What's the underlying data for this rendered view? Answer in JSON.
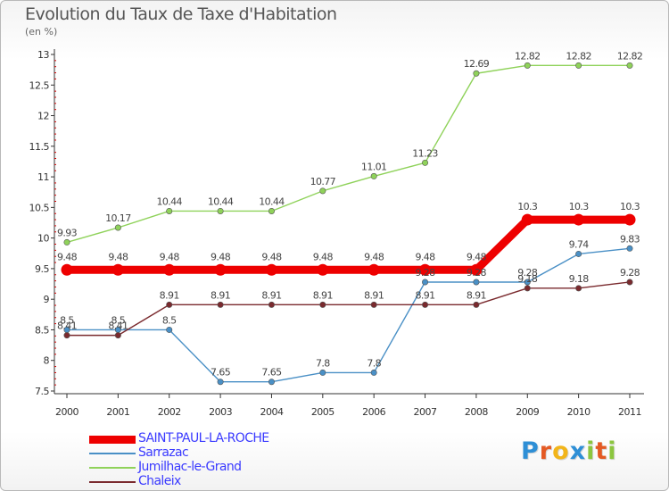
{
  "title": "Evolution du Taux de Taxe d'Habitation",
  "unit_label": "(en %)",
  "logo": {
    "text": "Proxiti",
    "letters": [
      "P",
      "r",
      "o",
      "x",
      "i",
      "t",
      "i"
    ],
    "colors": [
      "#2e8fd6",
      "#e45a24",
      "#f2b51a",
      "#2e8fd6",
      "#8cc63f",
      "#e45a24",
      "#8cc63f"
    ]
  },
  "chart_data": {
    "type": "line",
    "categories": [
      "2000",
      "2001",
      "2002",
      "2003",
      "2004",
      "2005",
      "2006",
      "2007",
      "2008",
      "2009",
      "2010",
      "2011"
    ],
    "ylim": [
      7.5,
      13
    ],
    "yticks": [
      "7.5",
      "8",
      "8.5",
      "9",
      "9.5",
      "10",
      "10.5",
      "11",
      "11.5",
      "12",
      "12.5",
      "13"
    ],
    "grid": false,
    "legend_position": "bottom-left",
    "series": [
      {
        "name": "SAINT-PAUL-LA-ROCHE",
        "color": "#ee0000",
        "width": 9,
        "values": [
          9.48,
          9.48,
          9.48,
          9.48,
          9.48,
          9.48,
          9.48,
          9.48,
          9.48,
          10.3,
          10.3,
          10.3
        ],
        "labels": [
          "9.48",
          "9.48",
          "9.48",
          "9.48",
          "9.48",
          "9.48",
          "9.48",
          "9.48",
          "9.48",
          "10.3",
          "10.3",
          "10.3"
        ]
      },
      {
        "name": "Sarrazac",
        "color": "#4a90c6",
        "width": 1.4,
        "values": [
          8.5,
          8.5,
          8.5,
          7.65,
          7.65,
          7.8,
          7.8,
          9.28,
          9.28,
          9.28,
          9.74,
          9.83
        ],
        "labels": [
          "8.5",
          "8.5",
          "8.5",
          "7.65",
          "7.65",
          "7.8",
          "7.8",
          "9.28",
          "9.28",
          "9.28",
          "9.74",
          "9.83"
        ]
      },
      {
        "name": "Jumilhac-le-Grand",
        "color": "#8fd25a",
        "width": 1.4,
        "values": [
          9.93,
          10.17,
          10.44,
          10.44,
          10.44,
          10.77,
          11.01,
          11.23,
          12.69,
          12.82,
          12.82,
          12.82
        ],
        "labels": [
          "9.93",
          "10.17",
          "10.44",
          "10.44",
          "10.44",
          "10.77",
          "11.01",
          "11.23",
          "12.69",
          "12.82",
          "12.82",
          "12.82"
        ]
      },
      {
        "name": "Chaleix",
        "color": "#7a2a2e",
        "width": 1.4,
        "values": [
          8.41,
          8.41,
          8.91,
          8.91,
          8.91,
          8.91,
          8.91,
          8.91,
          8.91,
          9.18,
          9.18,
          9.28
        ],
        "labels": [
          "8.41",
          "8.41",
          "8.91",
          "8.91",
          "8.91",
          "8.91",
          "8.91",
          "8.91",
          "8.91",
          "9.18",
          "9.18",
          "9.28"
        ]
      }
    ]
  }
}
